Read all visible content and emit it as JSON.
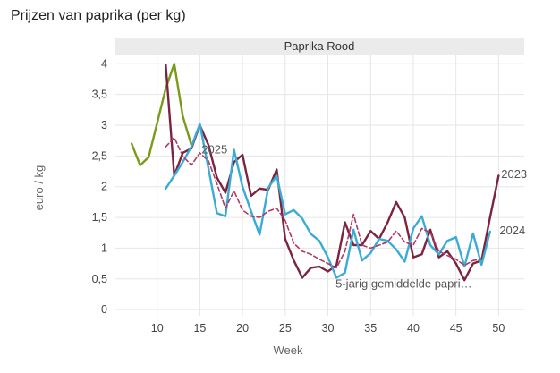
{
  "page": {
    "title": "Prijzen van paprika (per kg)"
  },
  "chart_data": {
    "type": "line",
    "title": "Prijzen van paprika (per kg)",
    "panel": "Paprika Rood",
    "xlabel": "Week",
    "ylabel": "euro / kg",
    "xlim": [
      5,
      53
    ],
    "ylim": [
      -0.1,
      4.15
    ],
    "x_ticks": [
      10,
      15,
      20,
      25,
      30,
      35,
      40,
      45,
      50
    ],
    "y_ticks": [
      0,
      0.5,
      1,
      1.5,
      2,
      2.5,
      3,
      3.5,
      4
    ],
    "y_tick_labels": [
      "0",
      "0,5",
      "1",
      "1,5",
      "2",
      "2,5",
      "3",
      "3,5",
      "4"
    ],
    "grid": true,
    "legend": "inline-labels",
    "series": [
      {
        "name": "2025",
        "color": "#7a9a1a",
        "style": "solid",
        "x": [
          7,
          8,
          9,
          11,
          12,
          13,
          14
        ],
        "y": [
          2.7,
          2.35,
          2.48,
          3.6,
          4.0,
          3.15,
          2.68
        ]
      },
      {
        "name": "2023",
        "color": "#7b2440",
        "style": "solid",
        "x": [
          11,
          12,
          13,
          14,
          15,
          16,
          17,
          18,
          19,
          20,
          21,
          22,
          23,
          24,
          25,
          26,
          27,
          28,
          29,
          30,
          31,
          32,
          33,
          34,
          35,
          36,
          37,
          38,
          39,
          40,
          41,
          42,
          43,
          44,
          45,
          46,
          47,
          48,
          49,
          50
        ],
        "y": [
          3.98,
          2.18,
          2.55,
          2.62,
          3.0,
          2.68,
          2.15,
          1.9,
          2.4,
          2.52,
          1.85,
          1.97,
          1.95,
          2.28,
          1.15,
          0.8,
          0.52,
          0.68,
          0.7,
          0.62,
          0.72,
          1.42,
          1.05,
          1.05,
          1.28,
          1.15,
          1.42,
          1.75,
          1.5,
          0.85,
          0.9,
          1.3,
          0.85,
          0.95,
          0.75,
          0.48,
          0.75,
          0.8,
          1.5,
          2.18
        ]
      },
      {
        "name": "2024",
        "color": "#39acd6",
        "style": "solid",
        "x": [
          11,
          12,
          13,
          14,
          15,
          16,
          17,
          18,
          19,
          20,
          21,
          22,
          23,
          24,
          25,
          26,
          27,
          28,
          29,
          30,
          31,
          32,
          33,
          34,
          35,
          36,
          37,
          38,
          39,
          40,
          41,
          42,
          43,
          44,
          45,
          46,
          47,
          48,
          49
        ],
        "y": [
          1.97,
          2.18,
          2.4,
          2.65,
          3.02,
          2.3,
          1.57,
          1.52,
          2.6,
          2.0,
          1.6,
          1.22,
          1.98,
          2.18,
          1.55,
          1.62,
          1.48,
          1.23,
          1.12,
          0.85,
          0.52,
          0.6,
          1.3,
          0.8,
          0.92,
          1.15,
          1.12,
          0.98,
          0.78,
          1.32,
          1.52,
          1.05,
          0.9,
          1.12,
          1.18,
          0.7,
          1.24,
          0.73,
          1.27
        ]
      },
      {
        "name": "5-jarig gemiddelde papri…",
        "color": "#b03a62",
        "style": "dashed",
        "x": [
          11,
          12,
          13,
          14,
          15,
          16,
          17,
          18,
          19,
          20,
          21,
          22,
          23,
          24,
          25,
          26,
          27,
          28,
          29,
          30,
          31,
          32,
          33,
          34,
          35,
          36,
          37,
          38,
          39,
          40,
          41,
          42,
          43,
          44,
          45,
          46,
          47,
          48
        ],
        "y": [
          2.65,
          2.8,
          2.5,
          2.35,
          2.55,
          2.42,
          2.05,
          1.65,
          1.93,
          1.62,
          1.52,
          1.5,
          1.6,
          1.65,
          1.45,
          1.08,
          0.95,
          0.9,
          0.82,
          0.75,
          0.68,
          0.95,
          1.55,
          1.05,
          1.0,
          1.05,
          1.1,
          1.28,
          1.1,
          1.05,
          1.32,
          1.25,
          0.95,
          0.88,
          0.82,
          0.72,
          0.8,
          0.82
        ]
      }
    ]
  }
}
